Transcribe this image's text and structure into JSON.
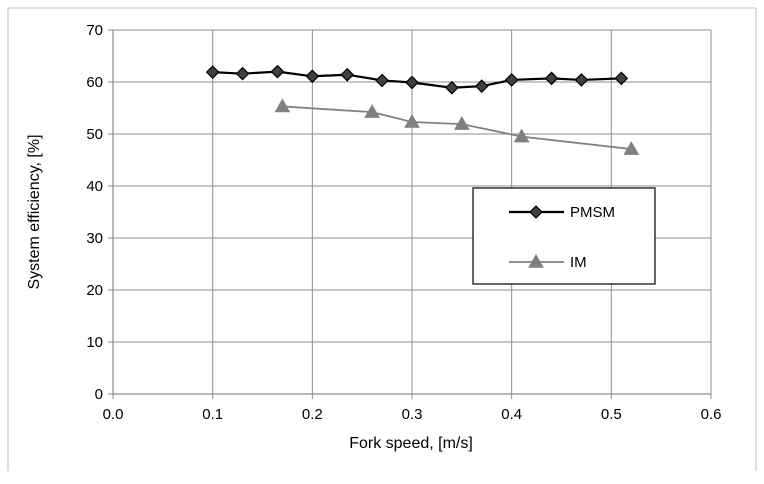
{
  "chart_data": {
    "type": "line",
    "xlabel": "Fork speed, [m/s]",
    "ylabel": "System efficiency, [%]",
    "xlim": [
      0.0,
      0.6
    ],
    "ylim": [
      0,
      70
    ],
    "x_ticks": [
      "0.0",
      "0.1",
      "0.2",
      "0.3",
      "0.4",
      "0.5",
      "0.6"
    ],
    "y_ticks": [
      "0",
      "10",
      "20",
      "30",
      "40",
      "50",
      "60",
      "70"
    ],
    "grid": true,
    "legend_position": "center-right",
    "series": [
      {
        "name": "PMSM",
        "marker": "diamond",
        "color": "#000000",
        "x": [
          0.1,
          0.13,
          0.165,
          0.2,
          0.235,
          0.27,
          0.3,
          0.34,
          0.37,
          0.4,
          0.44,
          0.47,
          0.51
        ],
        "y": [
          61.9,
          61.6,
          62.0,
          61.1,
          61.4,
          60.3,
          59.9,
          58.9,
          59.2,
          60.4,
          60.7,
          60.4,
          60.7
        ]
      },
      {
        "name": "IM",
        "marker": "triangle",
        "color": "#808080",
        "x": [
          0.17,
          0.26,
          0.3,
          0.35,
          0.41,
          0.52
        ],
        "y": [
          55.3,
          54.2,
          52.3,
          51.9,
          49.5,
          47.1
        ]
      }
    ]
  }
}
